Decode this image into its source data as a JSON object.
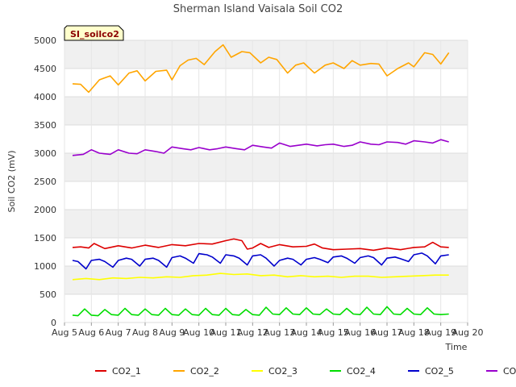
{
  "chart_data": {
    "type": "line",
    "title": "Sherman Island Vaisala Soil CO2",
    "xlabel": "Time",
    "ylabel": "Soil CO2 (mV)",
    "badge": "SI_soilco2",
    "xlim": [
      5,
      20
    ],
    "ylim": [
      0,
      5000
    ],
    "yticks": [
      0,
      500,
      1000,
      1500,
      2000,
      2500,
      3000,
      3500,
      4000,
      4500,
      5000
    ],
    "xticks": [
      {
        "x": 5,
        "label": "Aug 5"
      },
      {
        "x": 6,
        "label": "Aug 6"
      },
      {
        "x": 7,
        "label": "Aug 7"
      },
      {
        "x": 8,
        "label": "Aug 8"
      },
      {
        "x": 9,
        "label": "Aug 9"
      },
      {
        "x": 10,
        "label": "Aug 10"
      },
      {
        "x": 11,
        "label": "Aug 11"
      },
      {
        "x": 12,
        "label": "Aug 12"
      },
      {
        "x": 13,
        "label": "Aug 13"
      },
      {
        "x": 14,
        "label": "Aug 14"
      },
      {
        "x": 15,
        "label": "Aug 15"
      },
      {
        "x": 16,
        "label": "Aug 16"
      },
      {
        "x": 17,
        "label": "Aug 17"
      },
      {
        "x": 18,
        "label": "Aug 18"
      },
      {
        "x": 19,
        "label": "Aug 19"
      },
      {
        "x": 20,
        "label": "Aug 20"
      }
    ],
    "series": [
      {
        "name": "CO2_1",
        "color": "#dd0000",
        "x": [
          5.3,
          5.6,
          5.9,
          6.1,
          6.5,
          7.0,
          7.5,
          8.0,
          8.5,
          9.0,
          9.5,
          10.0,
          10.5,
          11.0,
          11.3,
          11.6,
          11.8,
          12.0,
          12.3,
          12.6,
          13.0,
          13.5,
          14.0,
          14.3,
          14.6,
          15.0,
          15.5,
          16.0,
          16.5,
          17.0,
          17.5,
          18.0,
          18.4,
          18.7,
          19.0,
          19.3
        ],
        "y": [
          1330,
          1340,
          1320,
          1400,
          1310,
          1360,
          1320,
          1370,
          1330,
          1380,
          1360,
          1400,
          1390,
          1450,
          1480,
          1450,
          1300,
          1320,
          1400,
          1330,
          1380,
          1340,
          1350,
          1390,
          1320,
          1290,
          1300,
          1310,
          1280,
          1320,
          1290,
          1330,
          1340,
          1420,
          1340,
          1330
        ]
      },
      {
        "name": "CO2_2",
        "color": "#ffa500",
        "x": [
          5.3,
          5.6,
          5.9,
          6.3,
          6.7,
          7.0,
          7.4,
          7.7,
          8.0,
          8.4,
          8.8,
          9.0,
          9.3,
          9.6,
          9.9,
          10.2,
          10.6,
          10.9,
          11.2,
          11.6,
          11.9,
          12.3,
          12.6,
          12.9,
          13.3,
          13.6,
          13.9,
          14.3,
          14.7,
          15.0,
          15.4,
          15.7,
          16.0,
          16.4,
          16.7,
          17.0,
          17.4,
          17.8,
          18.0,
          18.4,
          18.7,
          19.0,
          19.3
        ],
        "y": [
          4230,
          4220,
          4080,
          4300,
          4370,
          4210,
          4420,
          4460,
          4280,
          4450,
          4470,
          4300,
          4550,
          4650,
          4680,
          4570,
          4800,
          4920,
          4700,
          4800,
          4780,
          4600,
          4700,
          4660,
          4420,
          4560,
          4600,
          4420,
          4560,
          4600,
          4500,
          4640,
          4560,
          4590,
          4580,
          4370,
          4500,
          4600,
          4530,
          4780,
          4750,
          4580,
          4780
        ]
      },
      {
        "name": "CO2_3",
        "color": "#ffff00",
        "x": [
          5.3,
          5.8,
          6.3,
          6.8,
          7.3,
          7.8,
          8.3,
          8.8,
          9.3,
          9.8,
          10.3,
          10.8,
          11.3,
          11.8,
          12.3,
          12.8,
          13.3,
          13.8,
          14.3,
          14.8,
          15.3,
          15.8,
          16.3,
          16.8,
          17.3,
          17.8,
          18.3,
          18.8,
          19.3
        ],
        "y": [
          760,
          780,
          760,
          790,
          780,
          800,
          790,
          810,
          800,
          830,
          840,
          870,
          850,
          860,
          830,
          840,
          810,
          830,
          810,
          820,
          800,
          820,
          820,
          800,
          810,
          820,
          830,
          840,
          840
        ]
      },
      {
        "name": "CO2_4",
        "color": "#00dd00",
        "x": [
          5.3,
          5.5,
          5.75,
          6.0,
          6.25,
          6.5,
          6.75,
          7.0,
          7.25,
          7.5,
          7.75,
          8.0,
          8.25,
          8.5,
          8.75,
          9.0,
          9.25,
          9.5,
          9.75,
          10.0,
          10.25,
          10.5,
          10.75,
          11.0,
          11.25,
          11.5,
          11.75,
          12.0,
          12.25,
          12.5,
          12.75,
          13.0,
          13.25,
          13.5,
          13.75,
          14.0,
          14.25,
          14.5,
          14.75,
          15.0,
          15.25,
          15.5,
          15.75,
          16.0,
          16.25,
          16.5,
          16.75,
          17.0,
          17.25,
          17.5,
          17.75,
          18.0,
          18.25,
          18.5,
          18.75,
          19.0,
          19.3
        ],
        "y": [
          130,
          120,
          240,
          130,
          120,
          230,
          140,
          130,
          250,
          140,
          130,
          240,
          140,
          130,
          250,
          140,
          130,
          240,
          140,
          130,
          250,
          140,
          130,
          250,
          140,
          130,
          230,
          140,
          130,
          270,
          150,
          140,
          260,
          150,
          140,
          260,
          150,
          140,
          240,
          150,
          140,
          250,
          150,
          140,
          270,
          150,
          140,
          280,
          150,
          140,
          250,
          150,
          140,
          260,
          150,
          140,
          150
        ]
      },
      {
        "name": "CO2_5",
        "color": "#0000cc",
        "x": [
          5.3,
          5.5,
          5.8,
          6.0,
          6.3,
          6.5,
          6.8,
          7.0,
          7.3,
          7.5,
          7.8,
          8.0,
          8.3,
          8.5,
          8.8,
          9.0,
          9.3,
          9.5,
          9.8,
          10.0,
          10.3,
          10.5,
          10.8,
          11.0,
          11.3,
          11.5,
          11.8,
          12.0,
          12.3,
          12.5,
          12.8,
          13.0,
          13.3,
          13.5,
          13.8,
          14.0,
          14.3,
          14.5,
          14.8,
          15.0,
          15.3,
          15.5,
          15.8,
          16.0,
          16.3,
          16.5,
          16.8,
          17.0,
          17.3,
          17.5,
          17.8,
          18.0,
          18.3,
          18.5,
          18.8,
          19.0,
          19.3
        ],
        "y": [
          1100,
          1080,
          950,
          1100,
          1120,
          1080,
          980,
          1100,
          1140,
          1120,
          1000,
          1120,
          1140,
          1100,
          980,
          1150,
          1180,
          1140,
          1050,
          1220,
          1200,
          1160,
          1050,
          1200,
          1180,
          1140,
          1020,
          1180,
          1200,
          1140,
          1000,
          1100,
          1140,
          1120,
          1020,
          1120,
          1150,
          1120,
          1060,
          1160,
          1180,
          1140,
          1050,
          1150,
          1180,
          1150,
          1020,
          1140,
          1160,
          1130,
          1080,
          1200,
          1230,
          1180,
          1040,
          1180,
          1200
        ]
      },
      {
        "name": "CO2_6",
        "color": "#9900cc",
        "x": [
          5.3,
          5.7,
          6.0,
          6.3,
          6.7,
          7.0,
          7.4,
          7.7,
          8.0,
          8.4,
          8.7,
          9.0,
          9.4,
          9.7,
          10.0,
          10.4,
          10.7,
          11.0,
          11.4,
          11.7,
          12.0,
          12.4,
          12.7,
          13.0,
          13.4,
          13.7,
          14.0,
          14.4,
          14.7,
          15.0,
          15.4,
          15.7,
          16.0,
          16.4,
          16.7,
          17.0,
          17.4,
          17.7,
          18.0,
          18.4,
          18.7,
          19.0,
          19.3
        ],
        "y": [
          2960,
          2980,
          3060,
          3000,
          2980,
          3060,
          3000,
          2990,
          3060,
          3030,
          3000,
          3110,
          3080,
          3060,
          3100,
          3060,
          3080,
          3110,
          3080,
          3060,
          3140,
          3110,
          3090,
          3180,
          3120,
          3140,
          3160,
          3130,
          3150,
          3160,
          3120,
          3140,
          3200,
          3160,
          3150,
          3200,
          3190,
          3160,
          3220,
          3200,
          3180,
          3240,
          3200
        ]
      }
    ]
  }
}
